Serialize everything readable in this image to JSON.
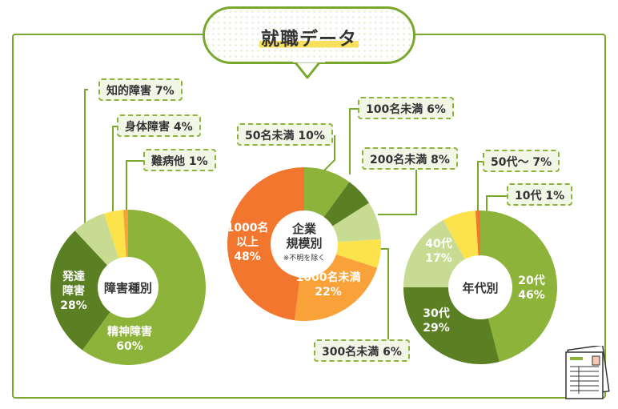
{
  "title": "就職データ",
  "colors": {
    "green": "#8db33a",
    "dark_green": "#5b8023",
    "light_green": "#c7dc92",
    "yellow": "#fde34b",
    "orange": "#f2762e",
    "light_orange": "#f9a23a",
    "border": "#7aa72e"
  },
  "chart_data": [
    {
      "type": "pie",
      "title": "障害種別",
      "slices": [
        {
          "label": "精神障害",
          "value": 60,
          "value_text": "60%",
          "color": "#8db33a"
        },
        {
          "label": "発達障害",
          "value": 28,
          "value_text": "28%",
          "color": "#5b8023"
        },
        {
          "label": "知的障害",
          "value": 7,
          "value_text": "7%",
          "color": "#c7dc92"
        },
        {
          "label": "身体障害",
          "value": 4,
          "value_text": "4%",
          "color": "#fde34b"
        },
        {
          "label": "難病他",
          "value": 1,
          "value_text": "1%",
          "color": "#f9a23a"
        }
      ],
      "callouts": [
        "知的障害 7%",
        "身体障害 4%",
        "難病他 1%"
      ]
    },
    {
      "type": "pie",
      "title": "企業規模別",
      "note": "※不明を除く",
      "slices": [
        {
          "label": "50名未満",
          "value": 10,
          "value_text": "10%",
          "color": "#8db33a"
        },
        {
          "label": "100名未満",
          "value": 6,
          "value_text": "6%",
          "color": "#5b8023"
        },
        {
          "label": "200名未満",
          "value": 8,
          "value_text": "8%",
          "color": "#c7dc92"
        },
        {
          "label": "300名未満",
          "value": 6,
          "value_text": "6%",
          "color": "#fde34b"
        },
        {
          "label": "1000名未満",
          "value": 22,
          "value_text": "22%",
          "color": "#f9a23a"
        },
        {
          "label": "1000名以上",
          "value": 48,
          "value_text": "48%",
          "color": "#f2762e"
        }
      ],
      "callouts": [
        "50名未満 10%",
        "100名未満 6%",
        "200名未満 8%",
        "300名未満 6%"
      ]
    },
    {
      "type": "pie",
      "title": "年代別",
      "slices": [
        {
          "label": "20代",
          "value": 46,
          "value_text": "46%",
          "color": "#8db33a"
        },
        {
          "label": "30代",
          "value": 29,
          "value_text": "29%",
          "color": "#5b8023"
        },
        {
          "label": "40代",
          "value": 17,
          "value_text": "17%",
          "color": "#c7dc92"
        },
        {
          "label": "50代～",
          "value": 7,
          "value_text": "7%",
          "color": "#fde34b"
        },
        {
          "label": "10代",
          "value": 1,
          "value_text": "1%",
          "color": "#f2762e"
        }
      ],
      "callouts": [
        "50代～ 7%",
        "10代 1%"
      ]
    }
  ]
}
